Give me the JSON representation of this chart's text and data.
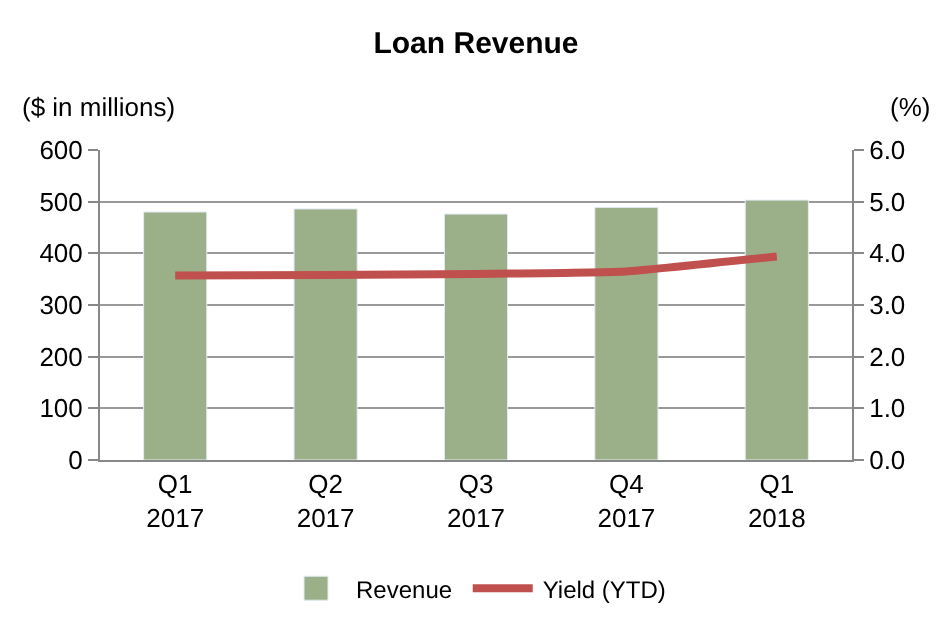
{
  "chart_data": {
    "type": "bar",
    "title": "Loan Revenue",
    "ylabel": "($ in millions)",
    "y2label": "(%)",
    "categories": [
      "Q1\n2017",
      "Q2\n2017",
      "Q3\n2017",
      "Q4\n2017",
      "Q1\n2018"
    ],
    "series": [
      {
        "name": "Revenue",
        "color": "#9bb088",
        "values": [
          480,
          486,
          476,
          489,
          503
        ]
      },
      {
        "name": "Yield (YTD)",
        "type": "line",
        "axis": "y2",
        "color": "#c0504d",
        "values": [
          3.57,
          3.58,
          3.6,
          3.65,
          3.94
        ]
      }
    ],
    "ylim": [
      0,
      600
    ],
    "yticks": [
      0,
      100,
      200,
      300,
      400,
      500,
      600
    ],
    "y2lim": [
      0,
      6
    ],
    "y2ticks": [
      {
        "value": 0,
        "label": "0.0"
      },
      {
        "value": 1,
        "label": "1.0"
      },
      {
        "value": 2,
        "label": "2.0"
      },
      {
        "value": 3,
        "label": "3.0"
      },
      {
        "value": 4,
        "label": "4.0"
      },
      {
        "value": 5,
        "label": "5.0"
      },
      {
        "value": 6,
        "label": "6.0"
      }
    ],
    "grid": "y",
    "legend": "bottom",
    "marker": "none",
    "line_style": "solid"
  }
}
